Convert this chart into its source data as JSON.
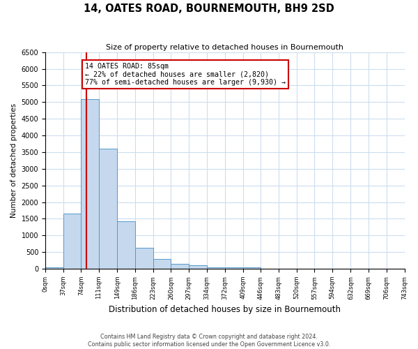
{
  "title": "14, OATES ROAD, BOURNEMOUTH, BH9 2SD",
  "subtitle": "Size of property relative to detached houses in Bournemouth",
  "xlabel": "Distribution of detached houses by size in Bournemouth",
  "ylabel": "Number of detached properties",
  "footnote1": "Contains HM Land Registry data © Crown copyright and database right 2024.",
  "footnote2": "Contains public sector information licensed under the Open Government Licence v3.0.",
  "bin_edges": [
    0,
    37,
    74,
    111,
    149,
    186,
    223,
    260,
    297,
    334,
    372,
    409,
    446,
    483,
    520,
    557,
    594,
    632,
    669,
    706,
    743
  ],
  "bin_heights": [
    50,
    1650,
    5080,
    3600,
    1430,
    620,
    300,
    155,
    100,
    50,
    50,
    50,
    0,
    0,
    0,
    0,
    0,
    0,
    0,
    0
  ],
  "bar_color": "#c5d8ed",
  "bar_edge_color": "#5599cc",
  "property_size": 85,
  "property_line_color": "#cc0000",
  "ylim": [
    0,
    6500
  ],
  "yticks": [
    0,
    500,
    1000,
    1500,
    2000,
    2500,
    3000,
    3500,
    4000,
    4500,
    5000,
    5500,
    6000,
    6500
  ],
  "annotation_title": "14 OATES ROAD: 85sqm",
  "annotation_line1": "← 22% of detached houses are smaller (2,820)",
  "annotation_line2": "77% of semi-detached houses are larger (9,930) →",
  "annotation_box_color": "#ffffff",
  "annotation_border_color": "#cc0000",
  "background_color": "#ffffff",
  "grid_color": "#ccddee"
}
